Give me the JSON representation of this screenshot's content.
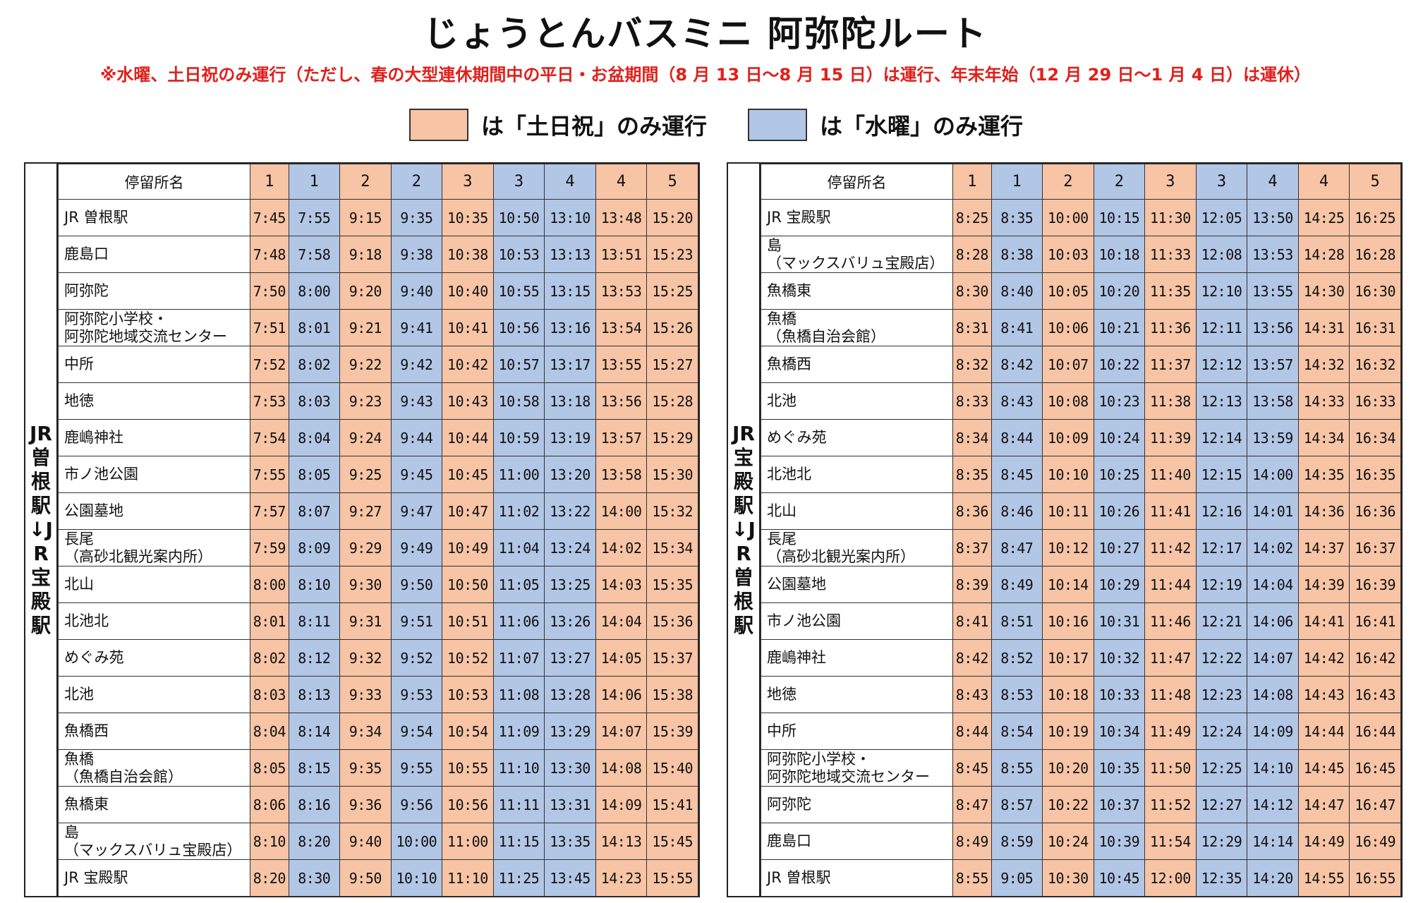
{
  "title": "じょうとんバスミニ 阿弥陀ルート",
  "notice": "※水曜、土日祝のみ運行（ただし、春の大型連休期間中の平日・お盆期間（8 月 13 日～8 月 15 日）は運行、年末年始（12 月 29 日～1 月 4 日）は運休）",
  "legend": {
    "weekend_label": "は「土日祝」のみ運行",
    "wednesday_label": "は「水曜」のみ運行",
    "weekend_color": "#f7c4a5",
    "wednesday_color": "#b2c6e6"
  },
  "column_header": "停留所名",
  "column_types": [
    "orange",
    "blue",
    "orange",
    "blue",
    "orange",
    "blue",
    "blue",
    "orange",
    "orange"
  ],
  "tables": [
    {
      "direction": "JR曽根駅↓JR宝殿駅",
      "trips": [
        "1",
        "1",
        "2",
        "2",
        "3",
        "3",
        "4",
        "4",
        "5"
      ],
      "rows": [
        {
          "stop": "JR 曽根駅",
          "times": [
            "7:45",
            "7:55",
            "9:15",
            "9:35",
            "10:35",
            "10:50",
            "13:10",
            "13:48",
            "15:20"
          ]
        },
        {
          "stop": "鹿島口",
          "times": [
            "7:48",
            "7:58",
            "9:18",
            "9:38",
            "10:38",
            "10:53",
            "13:13",
            "13:51",
            "15:23"
          ]
        },
        {
          "stop": "阿弥陀",
          "times": [
            "7:50",
            "8:00",
            "9:20",
            "9:40",
            "10:40",
            "10:55",
            "13:15",
            "13:53",
            "15:25"
          ]
        },
        {
          "stop": "阿弥陀小学校・",
          "stop2": "阿弥陀地域交流センター",
          "times": [
            "7:51",
            "8:01",
            "9:21",
            "9:41",
            "10:41",
            "10:56",
            "13:16",
            "13:54",
            "15:26"
          ]
        },
        {
          "stop": "中所",
          "times": [
            "7:52",
            "8:02",
            "9:22",
            "9:42",
            "10:42",
            "10:57",
            "13:17",
            "13:55",
            "15:27"
          ]
        },
        {
          "stop": "地徳",
          "times": [
            "7:53",
            "8:03",
            "9:23",
            "9:43",
            "10:43",
            "10:58",
            "13:18",
            "13:56",
            "15:28"
          ]
        },
        {
          "stop": "鹿嶋神社",
          "times": [
            "7:54",
            "8:04",
            "9:24",
            "9:44",
            "10:44",
            "10:59",
            "13:19",
            "13:57",
            "15:29"
          ]
        },
        {
          "stop": "市ノ池公園",
          "times": [
            "7:55",
            "8:05",
            "9:25",
            "9:45",
            "10:45",
            "11:00",
            "13:20",
            "13:58",
            "15:30"
          ]
        },
        {
          "stop": "公園墓地",
          "times": [
            "7:57",
            "8:07",
            "9:27",
            "9:47",
            "10:47",
            "11:02",
            "13:22",
            "14:00",
            "15:32"
          ]
        },
        {
          "stop": "長尾",
          "stop2": "（高砂北観光案内所）",
          "times": [
            "7:59",
            "8:09",
            "9:29",
            "9:49",
            "10:49",
            "11:04",
            "13:24",
            "14:02",
            "15:34"
          ]
        },
        {
          "stop": "北山",
          "times": [
            "8:00",
            "8:10",
            "9:30",
            "9:50",
            "10:50",
            "11:05",
            "13:25",
            "14:03",
            "15:35"
          ]
        },
        {
          "stop": "北池北",
          "times": [
            "8:01",
            "8:11",
            "9:31",
            "9:51",
            "10:51",
            "11:06",
            "13:26",
            "14:04",
            "15:36"
          ]
        },
        {
          "stop": "めぐみ苑",
          "times": [
            "8:02",
            "8:12",
            "9:32",
            "9:52",
            "10:52",
            "11:07",
            "13:27",
            "14:05",
            "15:37"
          ]
        },
        {
          "stop": "北池",
          "times": [
            "8:03",
            "8:13",
            "9:33",
            "9:53",
            "10:53",
            "11:08",
            "13:28",
            "14:06",
            "15:38"
          ]
        },
        {
          "stop": "魚橋西",
          "times": [
            "8:04",
            "8:14",
            "9:34",
            "9:54",
            "10:54",
            "11:09",
            "13:29",
            "14:07",
            "15:39"
          ]
        },
        {
          "stop": "魚橋",
          "stop2": "（魚橋自治会館）",
          "times": [
            "8:05",
            "8:15",
            "9:35",
            "9:55",
            "10:55",
            "11:10",
            "13:30",
            "14:08",
            "15:40"
          ]
        },
        {
          "stop": "魚橋東",
          "times": [
            "8:06",
            "8:16",
            "9:36",
            "9:56",
            "10:56",
            "11:11",
            "13:31",
            "14:09",
            "15:41"
          ]
        },
        {
          "stop": "島",
          "stop2": "（マックスバリュ宝殿店）",
          "times": [
            "8:10",
            "8:20",
            "9:40",
            "10:00",
            "11:00",
            "11:15",
            "13:35",
            "14:13",
            "15:45"
          ]
        },
        {
          "stop": "JR 宝殿駅",
          "times": [
            "8:20",
            "8:30",
            "9:50",
            "10:10",
            "11:10",
            "11:25",
            "13:45",
            "14:23",
            "15:55"
          ]
        }
      ]
    },
    {
      "direction": "JR宝殿駅↓JR曽根駅",
      "trips": [
        "1",
        "1",
        "2",
        "2",
        "3",
        "3",
        "4",
        "4",
        "5"
      ],
      "rows": [
        {
          "stop": "JR 宝殿駅",
          "times": [
            "8:25",
            "8:35",
            "10:00",
            "10:15",
            "11:30",
            "12:05",
            "13:50",
            "14:25",
            "16:25"
          ]
        },
        {
          "stop": "島",
          "stop2": "（マックスバリュ宝殿店）",
          "times": [
            "8:28",
            "8:38",
            "10:03",
            "10:18",
            "11:33",
            "12:08",
            "13:53",
            "14:28",
            "16:28"
          ]
        },
        {
          "stop": "魚橋東",
          "times": [
            "8:30",
            "8:40",
            "10:05",
            "10:20",
            "11:35",
            "12:10",
            "13:55",
            "14:30",
            "16:30"
          ]
        },
        {
          "stop": "魚橋",
          "stop2": "（魚橋自治会館）",
          "times": [
            "8:31",
            "8:41",
            "10:06",
            "10:21",
            "11:36",
            "12:11",
            "13:56",
            "14:31",
            "16:31"
          ]
        },
        {
          "stop": "魚橋西",
          "times": [
            "8:32",
            "8:42",
            "10:07",
            "10:22",
            "11:37",
            "12:12",
            "13:57",
            "14:32",
            "16:32"
          ]
        },
        {
          "stop": "北池",
          "times": [
            "8:33",
            "8:43",
            "10:08",
            "10:23",
            "11:38",
            "12:13",
            "13:58",
            "14:33",
            "16:33"
          ]
        },
        {
          "stop": "めぐみ苑",
          "times": [
            "8:34",
            "8:44",
            "10:09",
            "10:24",
            "11:39",
            "12:14",
            "13:59",
            "14:34",
            "16:34"
          ]
        },
        {
          "stop": "北池北",
          "times": [
            "8:35",
            "8:45",
            "10:10",
            "10:25",
            "11:40",
            "12:15",
            "14:00",
            "14:35",
            "16:35"
          ]
        },
        {
          "stop": "北山",
          "times": [
            "8:36",
            "8:46",
            "10:11",
            "10:26",
            "11:41",
            "12:16",
            "14:01",
            "14:36",
            "16:36"
          ]
        },
        {
          "stop": "長尾",
          "stop2": "（高砂北観光案内所）",
          "times": [
            "8:37",
            "8:47",
            "10:12",
            "10:27",
            "11:42",
            "12:17",
            "14:02",
            "14:37",
            "16:37"
          ]
        },
        {
          "stop": "公園墓地",
          "times": [
            "8:39",
            "8:49",
            "10:14",
            "10:29",
            "11:44",
            "12:19",
            "14:04",
            "14:39",
            "16:39"
          ]
        },
        {
          "stop": "市ノ池公園",
          "times": [
            "8:41",
            "8:51",
            "10:16",
            "10:31",
            "11:46",
            "12:21",
            "14:06",
            "14:41",
            "16:41"
          ]
        },
        {
          "stop": "鹿嶋神社",
          "times": [
            "8:42",
            "8:52",
            "10:17",
            "10:32",
            "11:47",
            "12:22",
            "14:07",
            "14:42",
            "16:42"
          ]
        },
        {
          "stop": "地徳",
          "times": [
            "8:43",
            "8:53",
            "10:18",
            "10:33",
            "11:48",
            "12:23",
            "14:08",
            "14:43",
            "16:43"
          ]
        },
        {
          "stop": "中所",
          "times": [
            "8:44",
            "8:54",
            "10:19",
            "10:34",
            "11:49",
            "12:24",
            "14:09",
            "14:44",
            "16:44"
          ]
        },
        {
          "stop": "阿弥陀小学校・",
          "stop2": "阿弥陀地域交流センター",
          "times": [
            "8:45",
            "8:55",
            "10:20",
            "10:35",
            "11:50",
            "12:25",
            "14:10",
            "14:45",
            "16:45"
          ]
        },
        {
          "stop": "阿弥陀",
          "times": [
            "8:47",
            "8:57",
            "10:22",
            "10:37",
            "11:52",
            "12:27",
            "14:12",
            "14:47",
            "16:47"
          ]
        },
        {
          "stop": "鹿島口",
          "times": [
            "8:49",
            "8:59",
            "10:24",
            "10:39",
            "11:54",
            "12:29",
            "14:14",
            "14:49",
            "16:49"
          ]
        },
        {
          "stop": "JR 曽根駅",
          "times": [
            "8:55",
            "9:05",
            "10:30",
            "10:45",
            "12:00",
            "12:35",
            "14:20",
            "14:55",
            "16:55"
          ]
        }
      ]
    }
  ]
}
